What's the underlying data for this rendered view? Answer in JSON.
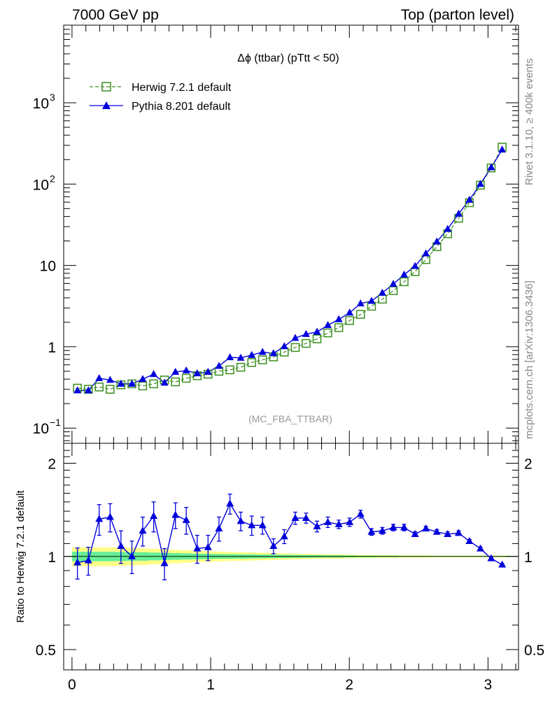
{
  "header": {
    "left": "7000 GeV pp",
    "right": "Top (parton level)"
  },
  "side": {
    "top": "Rivet 3.1.10, ≥ 400k events",
    "bottom": "mcplots.cern.ch [arXiv:1306.3436]"
  },
  "colors": {
    "herwig": "#3a8f1e",
    "pythia": "#0000dd",
    "band_inner": "#66ee99",
    "band_outer": "#ffff88"
  },
  "chart_data": [
    {
      "type": "line",
      "title": "Δϕ (ttbar) (pTtt < 50)",
      "watermark": "(MC_FBA_TTBAR)",
      "yscale": "log",
      "xlim": [
        -0.06,
        3.22
      ],
      "ylim": [
        0.065,
        9000
      ],
      "x_ticks": [
        0,
        1,
        2,
        3
      ],
      "y_ticks": [
        {
          "value": 0.1,
          "base": "10",
          "exp": "−1"
        },
        {
          "value": 1,
          "label": "1"
        },
        {
          "value": 10,
          "label": "10"
        },
        {
          "value": 100,
          "base": "10",
          "exp": "2"
        },
        {
          "value": 1000,
          "base": "10",
          "exp": "3"
        }
      ],
      "legend_position": "top-left",
      "x": [
        0.039,
        0.118,
        0.196,
        0.275,
        0.353,
        0.432,
        0.51,
        0.589,
        0.667,
        0.746,
        0.824,
        0.903,
        0.981,
        1.06,
        1.139,
        1.217,
        1.296,
        1.374,
        1.453,
        1.531,
        1.61,
        1.688,
        1.767,
        1.845,
        1.924,
        2.002,
        2.081,
        2.16,
        2.238,
        2.317,
        2.395,
        2.474,
        2.552,
        2.631,
        2.709,
        2.788,
        2.866,
        2.945,
        3.023,
        3.102
      ],
      "series": [
        {
          "name": "Herwig 7.2.1 default",
          "values": [
            0.31,
            0.3,
            0.32,
            0.3,
            0.34,
            0.35,
            0.33,
            0.35,
            0.39,
            0.37,
            0.41,
            0.44,
            0.46,
            0.5,
            0.52,
            0.56,
            0.64,
            0.69,
            0.75,
            0.86,
            0.98,
            1.1,
            1.25,
            1.48,
            1.72,
            2.1,
            2.5,
            3.15,
            3.85,
            4.9,
            6.3,
            8.4,
            11.8,
            17.0,
            24.5,
            38.0,
            59.0,
            97.0,
            158.0,
            285.0
          ]
        },
        {
          "name": "Pythia 8.201 default",
          "values": [
            0.29,
            0.29,
            0.41,
            0.39,
            0.35,
            0.35,
            0.4,
            0.46,
            0.36,
            0.49,
            0.51,
            0.47,
            0.49,
            0.58,
            0.74,
            0.73,
            0.79,
            0.86,
            0.83,
            1.01,
            1.28,
            1.43,
            1.52,
            1.84,
            2.17,
            2.62,
            3.4,
            3.65,
            4.6,
            5.9,
            7.7,
            9.8,
            14.0,
            19.6,
            28.0,
            43.0,
            64.0,
            100.0,
            160.0,
            265.0
          ]
        }
      ]
    },
    {
      "type": "line",
      "ylabel": "Ratio to Herwig 7.2.1 default",
      "yscale": "log",
      "xlim": [
        -0.06,
        3.22
      ],
      "ylim": [
        0.43,
        2.32
      ],
      "x_ticks": [
        0,
        1,
        2,
        3
      ],
      "y_ticks": [
        0.5,
        1,
        2
      ],
      "reference": 1.0,
      "band_inner_halfwidth": [
        0.035,
        0.035,
        0.035,
        0.035,
        0.034,
        0.033,
        0.031,
        0.029,
        0.027,
        0.025,
        0.023,
        0.021,
        0.02,
        0.018,
        0.017,
        0.016,
        0.015,
        0.014,
        0.013,
        0.012,
        0.011,
        0.01,
        0.009,
        0.008,
        0.008,
        0.007,
        0.006,
        0.006,
        0.005,
        0.005,
        0.004,
        0.004,
        0.004,
        0.003,
        0.003,
        0.003,
        0.003,
        0.003,
        0.003,
        0.003
      ],
      "band_outer_halfwidth": [
        0.07,
        0.07,
        0.07,
        0.07,
        0.068,
        0.066,
        0.062,
        0.058,
        0.054,
        0.05,
        0.046,
        0.042,
        0.04,
        0.036,
        0.034,
        0.032,
        0.03,
        0.028,
        0.026,
        0.024,
        0.022,
        0.02,
        0.018,
        0.016,
        0.016,
        0.014,
        0.012,
        0.012,
        0.01,
        0.01,
        0.008,
        0.008,
        0.008,
        0.006,
        0.006,
        0.006,
        0.006,
        0.006,
        0.006,
        0.006
      ],
      "series": [
        {
          "name": "Pythia 8.201 default",
          "values": [
            0.955,
            0.97,
            1.32,
            1.34,
            1.08,
            1.0,
            1.21,
            1.35,
            0.95,
            1.36,
            1.31,
            1.06,
            1.07,
            1.23,
            1.48,
            1.3,
            1.26,
            1.26,
            1.08,
            1.16,
            1.33,
            1.33,
            1.25,
            1.29,
            1.27,
            1.29,
            1.37,
            1.2,
            1.21,
            1.24,
            1.24,
            1.18,
            1.23,
            1.2,
            1.18,
            1.19,
            1.12,
            1.06,
            0.985,
            0.94
          ],
          "errors": [
            0.11,
            0.1,
            0.15,
            0.14,
            0.13,
            0.12,
            0.13,
            0.15,
            0.11,
            0.13,
            0.13,
            0.11,
            0.1,
            0.11,
            0.11,
            0.09,
            0.09,
            0.08,
            0.06,
            0.06,
            0.06,
            0.05,
            0.05,
            0.05,
            0.04,
            0.04,
            0.04,
            0.03,
            0.03,
            0.03,
            0.03,
            0.02,
            0.02,
            0.02,
            0.02,
            0.02,
            0.015,
            0.012,
            0.01,
            0.008
          ]
        }
      ]
    }
  ]
}
